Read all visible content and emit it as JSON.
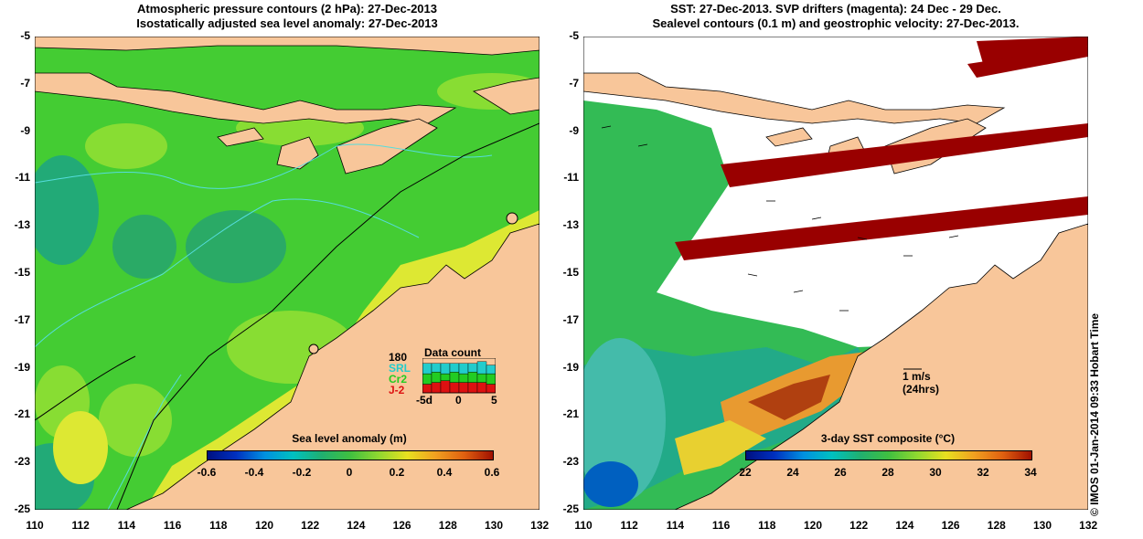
{
  "left_panel": {
    "title_line1": "Atmospheric pressure contours (2 hPa): 27-Dec-2013",
    "title_line2": "Isostatically adjusted sea level anomaly: 27-Dec-2013",
    "colorbar_title": "Sea level anomaly (m)",
    "colorbar_ticks": [
      "-0.6",
      "-0.4",
      "-0.2",
      "0",
      "0.2",
      "0.4",
      "0.6"
    ],
    "data_count": {
      "title": "Data count",
      "max_label": "180",
      "satellites": [
        "SRL",
        "Cr2",
        "J-2"
      ],
      "satellite_colors": [
        "#22cccc",
        "#22cc22",
        "#dd1111"
      ],
      "axis_labels": [
        "-5d",
        "0",
        "5"
      ]
    }
  },
  "right_panel": {
    "title_line1": "SST: 27-Dec-2013. SVP drifters (magenta): 24 Dec - 29 Dec.",
    "title_line2": "Sealevel contours (0.1 m) and geostrophic velocity: 27-Dec-2013.",
    "colorbar_title": "3-day SST composite (°C)",
    "colorbar_ticks": [
      "22",
      "24",
      "26",
      "28",
      "30",
      "32",
      "34"
    ],
    "scale_label": "1 m/s",
    "scale_sublabel": "(24hrs)"
  },
  "axes": {
    "lon_ticks": [
      "110",
      "112",
      "114",
      "116",
      "118",
      "120",
      "122",
      "124",
      "126",
      "128",
      "130",
      "132"
    ],
    "lat_ticks": [
      "-5",
      "-7",
      "-9",
      "-11",
      "-13",
      "-15",
      "-17",
      "-19",
      "-21",
      "-23",
      "-25"
    ]
  },
  "side_label": "© IMOS 01-Jan-2014 09:33 Hobart Time",
  "colors": {
    "land": "#f8c69a",
    "sea_green": "#33cc33",
    "sea_light": "#88dd33",
    "sea_yellow": "#dde833",
    "sea_teal": "#22aa77",
    "swath": "#990000",
    "contour": "#55dddd"
  }
}
